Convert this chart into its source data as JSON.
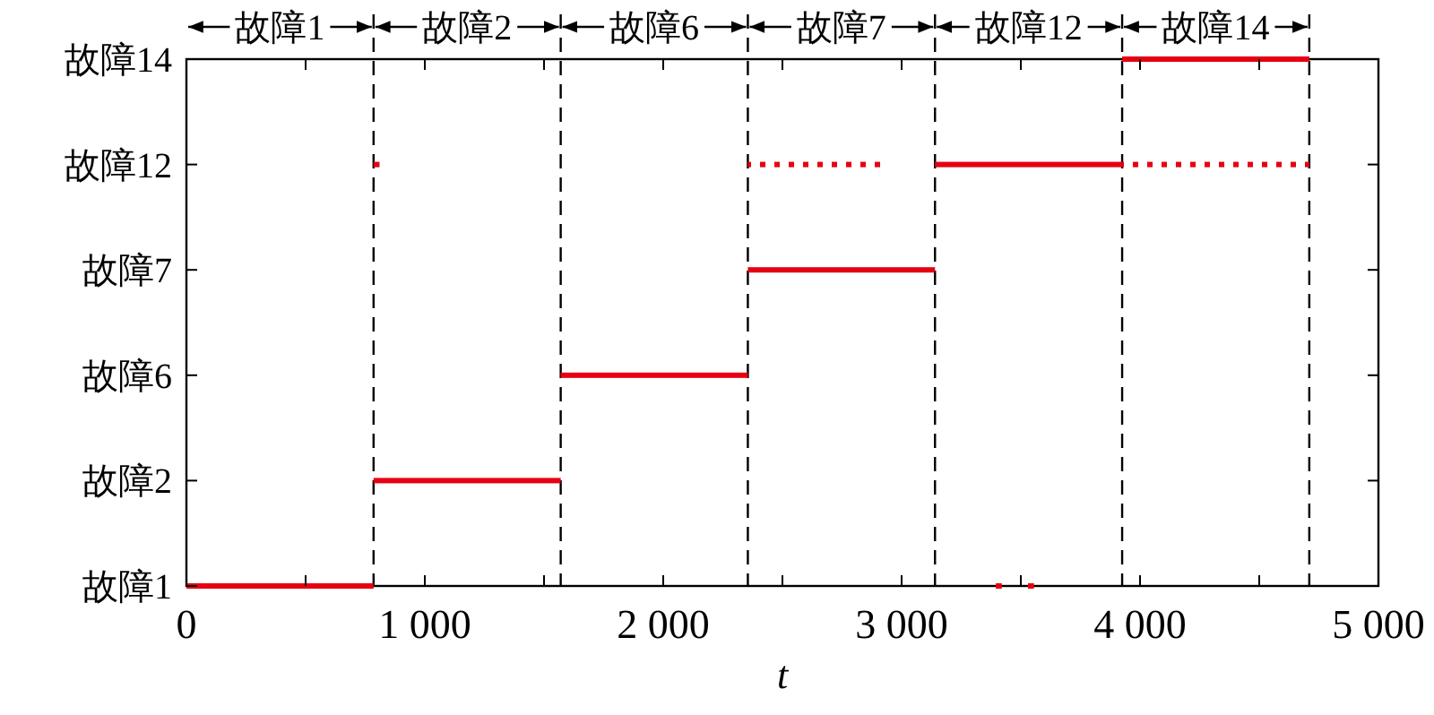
{
  "chart_data": {
    "type": "bar",
    "orientation": "horizontal",
    "xlabel": "t",
    "xlim": [
      0,
      5000
    ],
    "xticks": [
      {
        "value": 0,
        "label": "0"
      },
      {
        "value": 500,
        "label": null
      },
      {
        "value": 1000,
        "label": "1 000"
      },
      {
        "value": 1500,
        "label": null
      },
      {
        "value": 2000,
        "label": "2 000"
      },
      {
        "value": 2500,
        "label": null
      },
      {
        "value": 3000,
        "label": "3 000"
      },
      {
        "value": 3500,
        "label": null
      },
      {
        "value": 4000,
        "label": "4 000"
      },
      {
        "value": 4500,
        "label": null
      },
      {
        "value": 5000,
        "label": "5 000"
      }
    ],
    "categories": [
      "故障14",
      "故障12",
      "故障7",
      "故障6",
      "故障2",
      "故障1"
    ],
    "series": [
      {
        "color": "#e60012",
        "line_style": "solid",
        "base": [
          3925,
          3140,
          2355,
          1570,
          785,
          0
        ],
        "values": [
          785,
          785,
          785,
          785,
          785,
          785
        ]
      },
      {
        "color": "#e60012",
        "line_style": "solid",
        "base": [
          null,
          785,
          null,
          null,
          null,
          3395
        ],
        "values": [
          null,
          25,
          null,
          null,
          null,
          25
        ]
      },
      {
        "color": "#e60012",
        "line_style": "dotted",
        "base": [
          null,
          2355,
          null,
          null,
          null,
          null
        ],
        "values": [
          null,
          555,
          null,
          null,
          null,
          null
        ]
      },
      {
        "color": "#e60012",
        "line_style": "dotted",
        "base": [
          null,
          3925,
          null,
          null,
          null,
          null
        ],
        "values": [
          null,
          785,
          null,
          null,
          null,
          null
        ]
      },
      {
        "color": "#e60012",
        "line_style": "solid",
        "base": [
          null,
          null,
          null,
          null,
          null,
          3530
        ],
        "values": [
          null,
          null,
          null,
          null,
          null,
          25
        ]
      }
    ],
    "ref_lines": [
      {
        "axis": "x",
        "value": 785,
        "color": "#000000",
        "line_style": "dashed"
      },
      {
        "axis": "x",
        "value": 1570,
        "color": "#000000",
        "line_style": "dashed"
      },
      {
        "axis": "x",
        "value": 2355,
        "color": "#000000",
        "line_style": "dashed"
      },
      {
        "axis": "x",
        "value": 3140,
        "color": "#000000",
        "line_style": "dashed"
      },
      {
        "axis": "x",
        "value": 3925,
        "color": "#000000",
        "line_style": "dashed"
      },
      {
        "axis": "x",
        "value": 4710,
        "color": "#000000",
        "line_style": "dashed"
      }
    ],
    "annotations": [
      "故障1",
      "故障2",
      "故障6",
      "故障7",
      "故障12",
      "故障14"
    ]
  }
}
